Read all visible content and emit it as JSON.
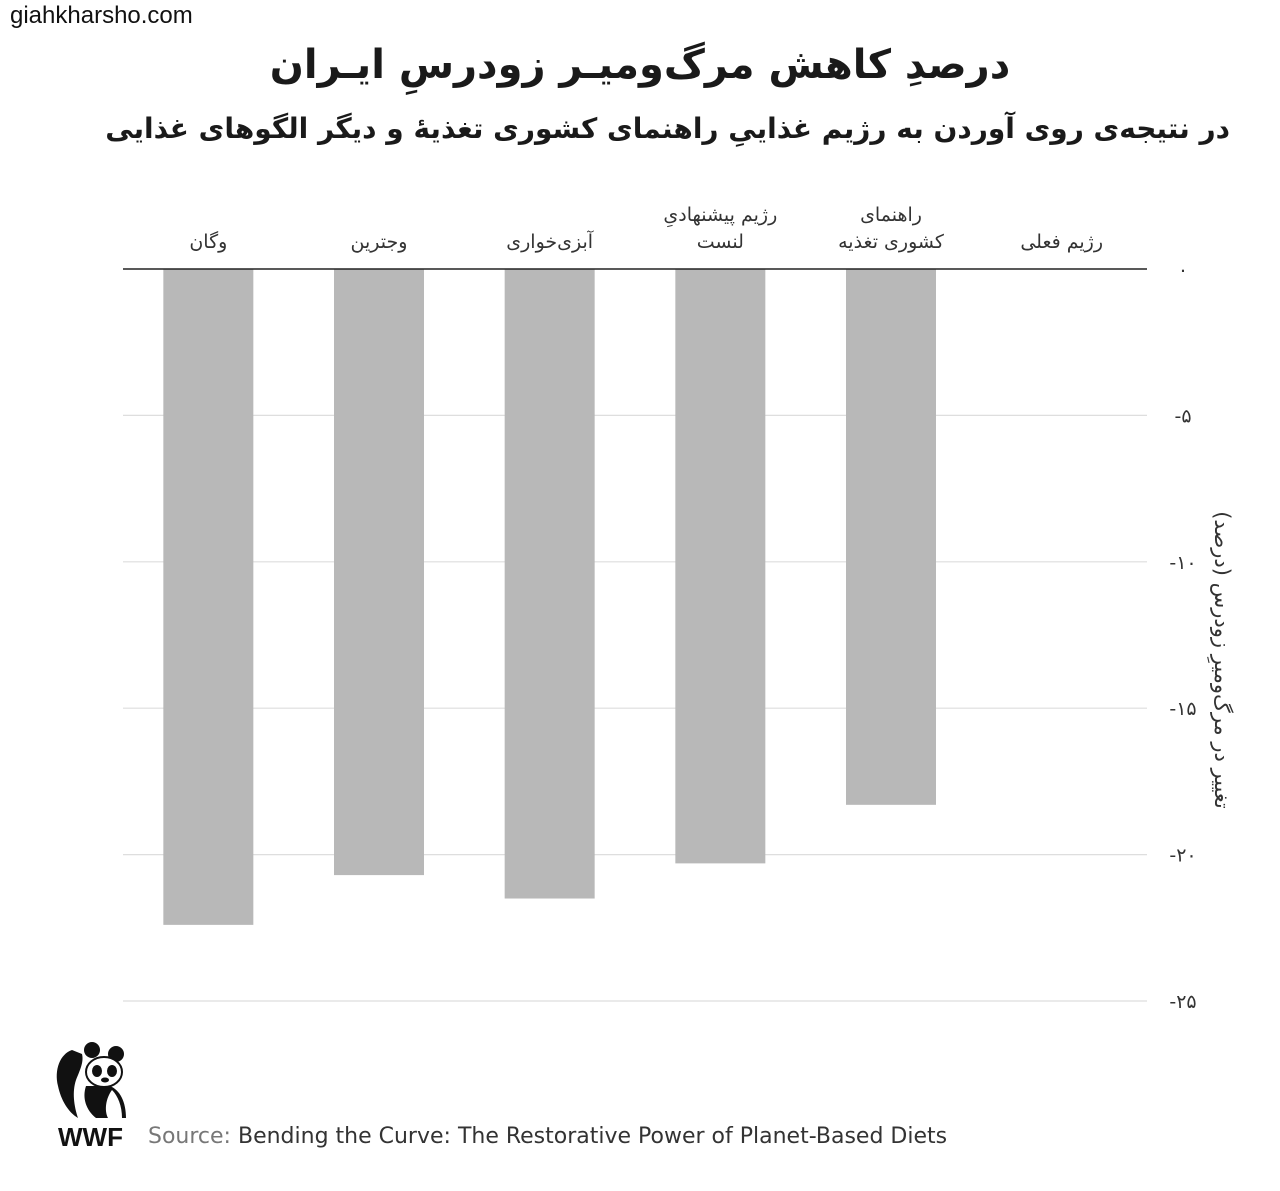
{
  "watermark": "giahkharsho.com",
  "title": "درصدِ کاهش مرگ‌ومیـر زودرسِ ایـران",
  "subtitle": "در نتیجه‌ی روی آوردن به رژیم غذاییِ راهنمای کشوری تغذیهٔ و دیگر الگوهای غذایی",
  "logo": {
    "icon": "panda-icon",
    "text": "WWF"
  },
  "source": {
    "prefix": "Source:",
    "text": "Bending the Curve: The Restorative Power of Planet-Based Diets"
  },
  "chart_data": {
    "type": "bar",
    "orientation": "vertical",
    "categories": [
      [
        "رژیم فعلی"
      ],
      [
        "راهنمای",
        "کشوری تغذیه"
      ],
      [
        "رژیم پیشنهادیِ",
        "لنست"
      ],
      [
        "آبزی‌خواری"
      ],
      [
        "وجترین"
      ],
      [
        "وگان"
      ]
    ],
    "values": [
      0,
      -18.3,
      -20.3,
      -21.5,
      -20.7,
      -22.4
    ],
    "ylabel": "تغییر در مرگ‌ومیرِ زودرس (درصد)",
    "ylim": [
      -25,
      0
    ],
    "yticks": [
      0,
      -5,
      -10,
      -15,
      -20,
      -25
    ],
    "ytick_labels": [
      "۰",
      "-۵",
      "-۱۰",
      "-۱۵",
      "-۲۰",
      "-۲۵"
    ],
    "category_axis_position": "top",
    "value_axis_position": "right",
    "grid": true,
    "bar_color": "#b8b8b8",
    "grid_color": "#dedede",
    "axis_color": "#222222"
  }
}
